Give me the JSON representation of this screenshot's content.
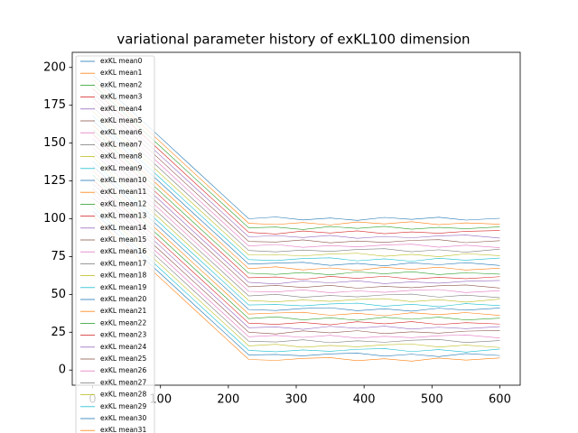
{
  "chart_data": {
    "type": "line",
    "title": "variational parameter history of exKL100 dimension",
    "x": [
      0,
      50,
      100,
      150,
      200,
      230,
      270,
      310,
      350,
      390,
      430,
      470,
      510,
      550,
      600
    ],
    "xlim": [
      -30,
      630
    ],
    "xticks": [
      0,
      100,
      200,
      300,
      400,
      500,
      600
    ],
    "ylim": [
      -10,
      210
    ],
    "yticks": [
      0,
      25,
      50,
      75,
      100,
      125,
      150,
      175,
      200
    ],
    "legend": "upper left",
    "series": [
      {
        "name": "exKL mean0",
        "color": "#1f77b4",
        "values": [
          195,
          174.3,
          153.7,
          133,
          112.4,
          100,
          101.2,
          99.2,
          100.5,
          98.9,
          100.9,
          99.6,
          101,
          99.1,
          100.3
        ]
      },
      {
        "name": "exKL mean1",
        "color": "#ff7f0e",
        "values": [
          192,
          171.3,
          150.7,
          130,
          109.4,
          97,
          96.2,
          97.5,
          95.9,
          97.9,
          96.6,
          98,
          96.1,
          97.3,
          96.4
        ]
      },
      {
        "name": "exKL mean2",
        "color": "#2ca02c",
        "values": [
          189,
          168.3,
          147.7,
          127,
          106.4,
          94,
          94.5,
          92.9,
          94.9,
          93.6,
          95,
          93.1,
          94.3,
          93.4,
          94.7
        ]
      },
      {
        "name": "exKL mean3",
        "color": "#d62728",
        "values": [
          186,
          165.3,
          144.7,
          124,
          103.4,
          91,
          89.9,
          91.9,
          90.6,
          92,
          90.1,
          91.3,
          90.4,
          91.7,
          92.2
        ]
      },
      {
        "name": "exKL mean4",
        "color": "#9467bd",
        "values": [
          183,
          162.3,
          141.7,
          121,
          100.4,
          88,
          88.9,
          87.6,
          89,
          87.1,
          88.3,
          87.4,
          88.7,
          89.2,
          87.2
        ]
      },
      {
        "name": "exKL mean5",
        "color": "#8c564b",
        "values": [
          180,
          159.3,
          138.7,
          118,
          97.4,
          85,
          84.6,
          86,
          84.1,
          85.3,
          84.4,
          85.7,
          86.2,
          84.2,
          85.5
        ]
      },
      {
        "name": "exKL mean6",
        "color": "#e377c2",
        "values": [
          177,
          156.3,
          135.7,
          115,
          94.4,
          82,
          83,
          81.1,
          82.3,
          81.4,
          82.7,
          83.2,
          81.2,
          82.5,
          80.9
        ]
      },
      {
        "name": "exKL mean7",
        "color": "#7f7f7f",
        "values": [
          174,
          153.3,
          132.7,
          112,
          91.4,
          79,
          78.1,
          79.3,
          78.4,
          79.7,
          80.2,
          78.2,
          79.5,
          77.9,
          79.9
        ]
      },
      {
        "name": "exKL mean8",
        "color": "#bcbd22",
        "values": [
          171,
          150.3,
          129.7,
          109,
          88.4,
          76,
          76.3,
          75.4,
          76.7,
          77.2,
          75.2,
          76.5,
          74.9,
          76.9,
          75.6
        ]
      },
      {
        "name": "exKL mean9",
        "color": "#17becf",
        "values": [
          168,
          147.3,
          126.7,
          106,
          85.4,
          73,
          72.4,
          73.7,
          74.2,
          72.2,
          73.5,
          71.9,
          73.9,
          72.6,
          74
        ]
      },
      {
        "name": "exKL mean10",
        "color": "#1f77b4",
        "values": [
          165,
          144.3,
          123.7,
          103,
          82.4,
          70,
          70.7,
          71.2,
          69.2,
          70.5,
          68.9,
          70.9,
          69.6,
          71,
          69.1
        ]
      },
      {
        "name": "exKL mean11",
        "color": "#ff7f0e",
        "values": [
          162,
          141.3,
          120.7,
          100,
          79.4,
          67,
          68.2,
          66.2,
          67.5,
          65.9,
          67.9,
          66.6,
          68,
          66.1,
          67.3
        ]
      },
      {
        "name": "exKL mean12",
        "color": "#2ca02c",
        "values": [
          159,
          138.3,
          117.7,
          97,
          76.4,
          64,
          63.2,
          64.5,
          62.9,
          64.9,
          63.6,
          65,
          63.1,
          64.3,
          63.4
        ]
      },
      {
        "name": "exKL mean13",
        "color": "#d62728",
        "values": [
          156,
          135.3,
          114.7,
          94,
          73.4,
          61,
          61.5,
          59.9,
          61.9,
          60.6,
          62,
          60.1,
          61.3,
          60.4,
          61.7
        ]
      },
      {
        "name": "exKL mean14",
        "color": "#9467bd",
        "values": [
          153,
          132.3,
          111.7,
          91,
          70.4,
          58,
          56.9,
          58.9,
          57.6,
          59,
          57.1,
          58.3,
          57.4,
          58.7,
          59.2
        ]
      },
      {
        "name": "exKL mean15",
        "color": "#8c564b",
        "values": [
          150,
          129.3,
          108.7,
          88,
          67.4,
          55,
          55.9,
          54.6,
          56,
          54.1,
          55.3,
          54.4,
          55.7,
          56.2,
          54.2
        ]
      },
      {
        "name": "exKL mean16",
        "color": "#e377c2",
        "values": [
          147,
          126.3,
          105.7,
          85,
          64.4,
          52,
          51.6,
          53,
          51.1,
          52.3,
          51.4,
          52.7,
          53.2,
          51.2,
          52.5
        ]
      },
      {
        "name": "exKL mean17",
        "color": "#7f7f7f",
        "values": [
          144,
          123.3,
          102.7,
          82,
          61.4,
          49,
          50,
          48.1,
          49.3,
          48.4,
          49.7,
          50.2,
          48.2,
          49.5,
          47.9
        ]
      },
      {
        "name": "exKL mean18",
        "color": "#bcbd22",
        "values": [
          141,
          120.3,
          99.7,
          79,
          58.4,
          46,
          45.1,
          46.3,
          45.4,
          46.7,
          47.2,
          45.2,
          46.5,
          44.9,
          46.9
        ]
      },
      {
        "name": "exKL mean19",
        "color": "#17becf",
        "values": [
          138,
          117.3,
          96.7,
          76,
          55.4,
          43,
          43.3,
          42.4,
          43.7,
          44.2,
          42.2,
          43.5,
          41.9,
          43.9,
          42.6
        ]
      },
      {
        "name": "exKL mean20",
        "color": "#1f77b4",
        "values": [
          135,
          114.3,
          93.7,
          73,
          52.4,
          40,
          39.4,
          40.7,
          41.2,
          39.2,
          40.5,
          38.9,
          40.9,
          39.6,
          41
        ]
      },
      {
        "name": "exKL mean21",
        "color": "#ff7f0e",
        "values": [
          132,
          111.3,
          90.7,
          70,
          49.4,
          37,
          37.7,
          38.2,
          36.2,
          37.5,
          35.9,
          37.9,
          36.6,
          38,
          36.1
        ]
      },
      {
        "name": "exKL mean22",
        "color": "#2ca02c",
        "values": [
          129,
          108.3,
          87.7,
          67,
          46.4,
          34,
          35.2,
          33.2,
          34.5,
          32.9,
          34.9,
          33.6,
          35,
          33.1,
          34.3
        ]
      },
      {
        "name": "exKL mean23",
        "color": "#d62728",
        "values": [
          126,
          105.3,
          84.7,
          64,
          43.4,
          31,
          30.2,
          31.5,
          29.9,
          31.9,
          30.6,
          32,
          30.1,
          31.3,
          30.4
        ]
      },
      {
        "name": "exKL mean24",
        "color": "#9467bd",
        "values": [
          123,
          102.3,
          81.7,
          61,
          40.4,
          28,
          28.5,
          26.9,
          28.9,
          27.6,
          29,
          27.1,
          28.3,
          27.4,
          28.7
        ]
      },
      {
        "name": "exKL mean25",
        "color": "#8c564b",
        "values": [
          120,
          99.3,
          78.7,
          58,
          37.4,
          25,
          23.9,
          25.9,
          24.6,
          26,
          24.1,
          25.3,
          24.4,
          25.7,
          26.2
        ]
      },
      {
        "name": "exKL mean26",
        "color": "#e377c2",
        "values": [
          117,
          96.3,
          75.7,
          55,
          34.4,
          22,
          22.9,
          21.6,
          23,
          21.1,
          22.3,
          21.4,
          22.7,
          23.2,
          21.2
        ]
      },
      {
        "name": "exKL mean27",
        "color": "#7f7f7f",
        "values": [
          114,
          93.3,
          72.7,
          52,
          31.4,
          19,
          18.6,
          20,
          18.1,
          19.3,
          18.4,
          19.7,
          20.2,
          18.2,
          19.5
        ]
      },
      {
        "name": "exKL mean28",
        "color": "#bcbd22",
        "values": [
          111,
          90.3,
          69.7,
          49,
          28.4,
          16,
          17,
          15.1,
          16.3,
          15.4,
          16.7,
          17.2,
          15.2,
          16.5,
          14.9
        ]
      },
      {
        "name": "exKL mean29",
        "color": "#17becf",
        "values": [
          108,
          87.3,
          66.7,
          46,
          25.4,
          13,
          12.1,
          13.3,
          12.4,
          13.7,
          14.2,
          12.2,
          13.5,
          11.9,
          13.9
        ]
      },
      {
        "name": "exKL mean30",
        "color": "#1f77b4",
        "values": [
          105,
          84.3,
          63.7,
          43,
          22.4,
          10,
          10.3,
          9.4,
          10.7,
          11.2,
          9.2,
          10.5,
          8.9,
          10.9,
          9.6
        ]
      },
      {
        "name": "exKL mean31",
        "color": "#ff7f0e",
        "values": [
          102,
          81.3,
          60.7,
          40,
          19.4,
          7,
          6.4,
          7.7,
          8.2,
          6.2,
          7.5,
          5.9,
          7.9,
          6.6,
          8
        ]
      }
    ]
  }
}
